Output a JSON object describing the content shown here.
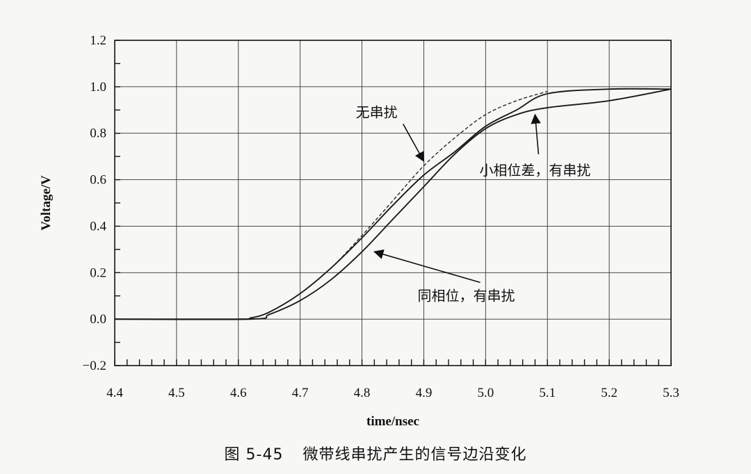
{
  "chart_data": {
    "type": "line",
    "xlabel": "time/nsec",
    "ylabel": "Voltage/V",
    "xlim": [
      4.4,
      5.3
    ],
    "ylim": [
      -0.2,
      1.2
    ],
    "xticks": [
      "4.4",
      "4.5",
      "4.6",
      "4.7",
      "4.8",
      "4.9",
      "5.0",
      "5.1",
      "5.2",
      "5.3"
    ],
    "yticks": [
      "−0.2",
      "0.0",
      "0.2",
      "0.4",
      "0.6",
      "0.8",
      "1.0",
      "1.2"
    ],
    "grid": true,
    "series": [
      {
        "style": "dashed",
        "x": [
          4.4,
          4.6,
          4.62,
          4.65,
          4.7,
          4.75,
          4.8,
          4.85,
          4.9,
          4.95,
          5.0,
          5.05,
          5.1
        ],
        "y": [
          0.0,
          0.0,
          0.005,
          0.03,
          0.11,
          0.22,
          0.36,
          0.51,
          0.66,
          0.78,
          0.88,
          0.94,
          0.98
        ]
      },
      {
        "style": "solid",
        "x": [
          4.4,
          4.6,
          4.62,
          4.65,
          4.7,
          4.75,
          4.8,
          4.85,
          4.9,
          4.95,
          5.0,
          5.05,
          5.1,
          5.2,
          5.3
        ],
        "y": [
          0.0,
          0.0,
          0.005,
          0.03,
          0.11,
          0.22,
          0.35,
          0.49,
          0.62,
          0.72,
          0.83,
          0.9,
          0.97,
          0.99,
          0.99
        ]
      },
      {
        "style": "solid",
        "x": [
          4.4,
          4.62,
          4.65,
          4.7,
          4.75,
          4.8,
          4.85,
          4.9,
          4.95,
          5.0,
          5.05,
          5.1,
          5.2,
          5.3
        ],
        "y": [
          0.0,
          0.0,
          0.02,
          0.08,
          0.17,
          0.29,
          0.43,
          0.57,
          0.71,
          0.82,
          0.88,
          0.91,
          0.94,
          0.99
        ]
      }
    ],
    "annotations": [
      {
        "text": "无串扰",
        "x": 4.79,
        "y": 0.87,
        "arrow_to": [
          4.9,
          0.68
        ]
      },
      {
        "text": "小相位差，有串扰",
        "x": 4.99,
        "y": 0.62,
        "arrow_to": [
          5.08,
          0.88
        ]
      },
      {
        "text": "同相位，有串扰",
        "x": 4.89,
        "y": 0.08,
        "arrow_to": [
          4.82,
          0.29
        ]
      }
    ]
  },
  "caption": {
    "number": "图 5-45",
    "text": "微带线串扰产生的信号边沿变化"
  }
}
